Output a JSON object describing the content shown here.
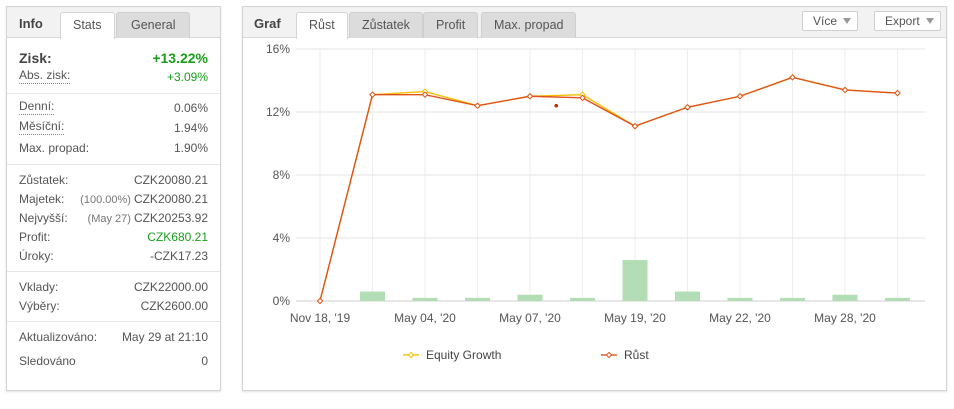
{
  "left_panel": {
    "title": "Info",
    "tabs": [
      {
        "label": "Stats"
      },
      {
        "label": "General"
      }
    ],
    "stats": {
      "gain": {
        "label": "Zisk:",
        "value": "+13.22%"
      },
      "abs_gain": {
        "label": "Abs. zisk:",
        "value": "+3.09%"
      },
      "daily": {
        "label": "Denní:",
        "value": "0.06%"
      },
      "monthly": {
        "label": "Měsíční:",
        "value": "1.94%"
      },
      "drawdown": {
        "label": "Max. propad:",
        "value": "1.90%"
      },
      "balance": {
        "label": "Zůstatek:",
        "value": "CZK20080.21"
      },
      "equity": {
        "label": "Majetek:",
        "sub": "(100.00%)",
        "value": "CZK20080.21"
      },
      "highest": {
        "label": "Nejvyšší:",
        "sub": "(May 27)",
        "value": "CZK20253.92"
      },
      "profit": {
        "label": "Profit:",
        "value": "CZK680.21"
      },
      "interest": {
        "label": "Úroky:",
        "value": "-CZK17.23"
      },
      "deposits": {
        "label": "Vklady:",
        "value": "CZK22000.00"
      },
      "withdrawals": {
        "label": "Výběry:",
        "value": "CZK2600.00"
      },
      "updated": {
        "label": "Aktualizováno:",
        "value": "May 29 at 21:10"
      },
      "tracking": {
        "label": "Sledováno",
        "value": "0"
      }
    }
  },
  "right_panel": {
    "title": "Graf",
    "tabs": [
      {
        "label": "Růst"
      },
      {
        "label": "Zůstatek"
      },
      {
        "label": "Profit"
      },
      {
        "label": "Max. propad"
      }
    ],
    "more_button": "Více",
    "export_button": "Export"
  },
  "chart_data": {
    "type": "line",
    "x_ticks": [
      "Nov 18, '19",
      "May 04, '20",
      "May 07, '20",
      "May 19, '20",
      "May 22, '20",
      "May 28, '20"
    ],
    "y_ticks": [
      "0%",
      "4%",
      "8%",
      "12%",
      "16%"
    ],
    "ylim": [
      0,
      16
    ],
    "series": [
      {
        "name": "Equity Growth",
        "color": "#f2c200",
        "x": [
          0,
          1,
          2,
          3,
          4,
          5,
          6,
          7,
          8,
          9,
          10,
          11
        ],
        "values": [
          0,
          13.1,
          13.3,
          12.4,
          13.0,
          13.1,
          11.1,
          12.3,
          13.0,
          14.2,
          13.4,
          13.2
        ]
      },
      {
        "name": "Růst",
        "color": "#e0541c",
        "x": [
          0,
          1,
          2,
          3,
          4,
          5,
          6,
          7,
          8,
          9,
          10,
          11
        ],
        "values": [
          0,
          13.1,
          13.1,
          12.4,
          13.0,
          12.9,
          11.1,
          12.3,
          13.0,
          14.2,
          13.4,
          13.2
        ]
      }
    ],
    "extra_point": {
      "x": 4.5,
      "value": 12.4,
      "color": "#cc2200"
    },
    "bars": {
      "color": "#b3deb5",
      "x": [
        1,
        2,
        3,
        4,
        5,
        6,
        7,
        8,
        9,
        10,
        11
      ],
      "values": [
        0.6,
        0.2,
        0.2,
        0.4,
        0.2,
        2.6,
        0.6,
        0.2,
        0.2,
        0.4,
        0.2
      ]
    },
    "grid": true,
    "legend_position": "bottom"
  }
}
